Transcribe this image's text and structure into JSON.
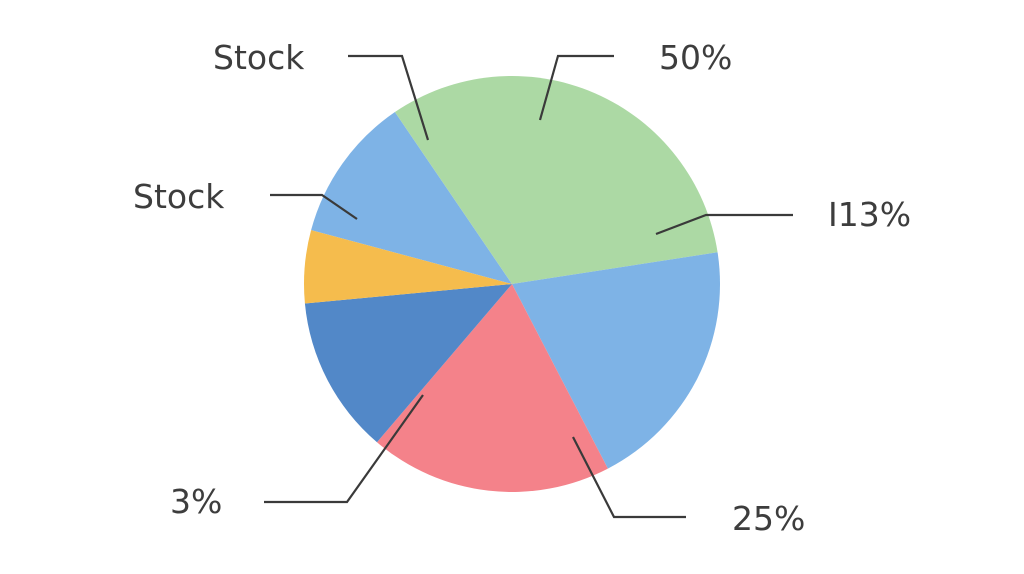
{
  "chart_data": {
    "type": "pie",
    "slices": [
      {
        "value": 12,
        "color": "#7eb3e6"
      },
      {
        "value": 34,
        "color": "#acd9a4"
      },
      {
        "value": 21,
        "color": "#7eb3e6"
      },
      {
        "value": 20,
        "color": "#f4828a"
      },
      {
        "value": 13,
        "color": "#5288c8"
      },
      {
        "value": 6,
        "color": "#f5bc4d"
      }
    ],
    "labels": [
      {
        "text": "Stock",
        "slice": 5
      },
      {
        "text": "50%",
        "slice": 0
      },
      {
        "text": "Stock",
        "slice": 4
      },
      {
        "text": "I13%",
        "slice": 1
      },
      {
        "text": "3%",
        "slice": 3
      },
      {
        "text": "25%",
        "slice": 2
      }
    ]
  }
}
